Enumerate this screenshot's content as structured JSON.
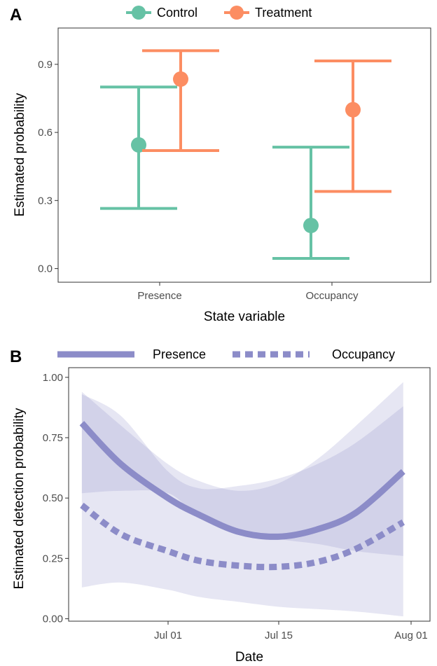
{
  "chart_data": [
    {
      "type": "errorbar",
      "panel_label": "A",
      "xlabel": "State variable",
      "ylabel": "Estimated probability",
      "categories": [
        "Presence",
        "Occupancy"
      ],
      "ylim": [
        -0.06,
        1.06
      ],
      "yticks": [
        0.0,
        0.3,
        0.6,
        0.9
      ],
      "ytick_labels": [
        "0.0",
        "0.3",
        "0.6",
        "0.9"
      ],
      "legend_position": "top",
      "grid": false,
      "series": [
        {
          "name": "Control",
          "color": "#66c2a5",
          "values": [
            0.545,
            0.19
          ],
          "lower": [
            0.265,
            0.045
          ],
          "upper": [
            0.8,
            0.535
          ]
        },
        {
          "name": "Treatment",
          "color": "#fc8d62",
          "values": [
            0.835,
            0.7
          ],
          "upper": [
            0.96,
            0.915
          ],
          "lower": [
            0.52,
            0.34
          ]
        }
      ]
    },
    {
      "type": "line",
      "panel_label": "B",
      "xlabel": "Date",
      "ylabel": "Estimated detection probability",
      "xtick_labels": [
        "Jul 01",
        "Jul 15",
        "Aug 01"
      ],
      "yticks": [
        0.0,
        0.25,
        0.5,
        0.75,
        1.0
      ],
      "ytick_labels": [
        "0.00",
        "0.25",
        "0.50",
        "0.75",
        "1.00"
      ],
      "ylim": [
        -0.01,
        1.04
      ],
      "legend_position": "top",
      "grid": false,
      "color": "#8c8cc8",
      "x": [
        "Jun 20",
        "Jun 25",
        "Jul 01",
        "Jul 05",
        "Jul 10",
        "Jul 15",
        "Jul 20",
        "Jul 25",
        "Jul 31"
      ],
      "series": [
        {
          "name": "Presence",
          "linestyle": "solid",
          "values": [
            0.81,
            0.64,
            0.5,
            0.43,
            0.36,
            0.34,
            0.37,
            0.44,
            0.61
          ],
          "lower": [
            0.52,
            0.53,
            0.52,
            0.42,
            0.36,
            0.33,
            0.31,
            0.28,
            0.26
          ],
          "upper": [
            0.93,
            0.84,
            0.61,
            0.54,
            0.55,
            0.58,
            0.64,
            0.73,
            0.88
          ]
        },
        {
          "name": "Occupancy",
          "linestyle": "dashed",
          "values": [
            0.47,
            0.35,
            0.28,
            0.24,
            0.22,
            0.215,
            0.235,
            0.29,
            0.4
          ],
          "lower": [
            0.13,
            0.15,
            0.12,
            0.09,
            0.07,
            0.05,
            0.04,
            0.03,
            0.01
          ],
          "upper": [
            0.94,
            0.8,
            0.64,
            0.57,
            0.53,
            0.56,
            0.66,
            0.8,
            0.98
          ]
        }
      ]
    }
  ]
}
